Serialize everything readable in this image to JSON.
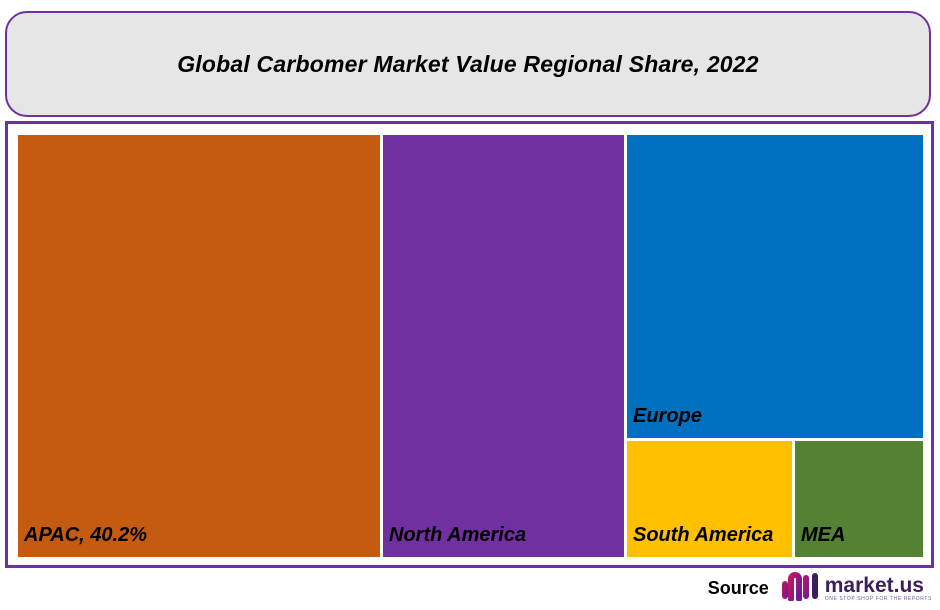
{
  "chart_data": {
    "type": "treemap",
    "title": "Global Carbomer Market Value Regional Share, 2022",
    "tiles": [
      {
        "label": "APAC, 40.2%",
        "region": "APAC",
        "share_percent": 40.2,
        "color": "#c55a11"
      },
      {
        "label": "North America",
        "region": "North America",
        "color": "#7030a0"
      },
      {
        "label": "Europe",
        "region": "Europe",
        "color": "#0070c0"
      },
      {
        "label": "South America",
        "region": "South America",
        "color": "#ffc000"
      },
      {
        "label": "MEA",
        "region": "MEA",
        "color": "#548235"
      }
    ]
  },
  "footer": {
    "source_label": "Source",
    "brand_name": "market.us",
    "brand_tagline": "ONE STOP SHOP FOR THE REPORTS",
    "brand_color": "#3b1f58",
    "logo_icon": "market-us-logo-icon"
  }
}
